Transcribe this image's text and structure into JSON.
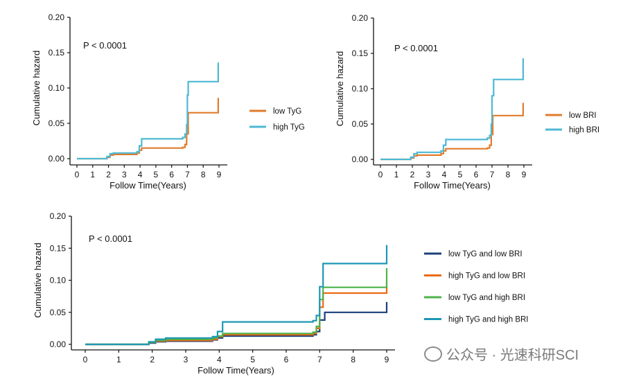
{
  "watermark": "公众号 · 光速科研SCI",
  "colors": {
    "orange": "#E07B2A",
    "cyan": "#4DB8D3",
    "navy": "#1B3F7A",
    "orange2": "#EB6A12",
    "green": "#4DB34A",
    "teal": "#1D97B4"
  },
  "chart_data": [
    {
      "id": "tyg",
      "type": "line",
      "step": true,
      "annotation": "P < 0.0001",
      "xlabel": "Follow Time(Years)",
      "ylabel": "Cumulative hazard",
      "xlim": [
        0,
        9
      ],
      "ylim": [
        0,
        0.2
      ],
      "xticks": [
        "0",
        "1",
        "2",
        "3",
        "4",
        "5",
        "6",
        "7",
        "8",
        "9"
      ],
      "yticks": [
        "0.00",
        "0.05",
        "0.10",
        "0.15",
        "0.20"
      ],
      "legend_position": "right",
      "series": [
        {
          "name": "low TyG",
          "color": "orange",
          "x": [
            0,
            1.5,
            1.9,
            2.1,
            2.3,
            3.8,
            3.95,
            4.1,
            6.7,
            6.85,
            6.95,
            7.05,
            8.95,
            8.95
          ],
          "y": [
            0,
            0,
            0.002,
            0.005,
            0.006,
            0.008,
            0.012,
            0.015,
            0.016,
            0.02,
            0.035,
            0.065,
            0.065,
            0.086
          ]
        },
        {
          "name": "high TyG",
          "color": "cyan",
          "x": [
            0,
            1.5,
            1.9,
            2.1,
            2.3,
            3.8,
            3.95,
            4.1,
            6.7,
            6.85,
            6.95,
            7.0,
            7.05,
            8.95,
            8.95
          ],
          "y": [
            0,
            0,
            0.003,
            0.007,
            0.008,
            0.01,
            0.018,
            0.028,
            0.03,
            0.035,
            0.048,
            0.09,
            0.109,
            0.109,
            0.136
          ]
        }
      ]
    },
    {
      "id": "bri",
      "type": "line",
      "step": true,
      "annotation": "P < 0.0001",
      "xlabel": "Follow Time(Years)",
      "ylabel": "Cumulative hazard",
      "xlim": [
        0,
        9
      ],
      "ylim": [
        0,
        0.2
      ],
      "xticks": [
        "0",
        "1",
        "2",
        "3",
        "4",
        "5",
        "6",
        "7",
        "8",
        "9"
      ],
      "yticks": [
        "0.00",
        "0.05",
        "0.10",
        "0.15",
        "0.20"
      ],
      "legend_position": "right",
      "series": [
        {
          "name": "low BRI",
          "color": "orange",
          "x": [
            0,
            1.5,
            1.9,
            2.1,
            2.3,
            3.8,
            3.95,
            4.1,
            6.7,
            6.85,
            6.95,
            7.05,
            8.95,
            8.95
          ],
          "y": [
            0,
            0,
            0.002,
            0.005,
            0.006,
            0.008,
            0.012,
            0.015,
            0.016,
            0.02,
            0.035,
            0.062,
            0.062,
            0.08
          ]
        },
        {
          "name": "high BRI",
          "color": "cyan",
          "x": [
            0,
            1.5,
            1.9,
            2.1,
            2.3,
            3.8,
            3.95,
            4.1,
            6.7,
            6.85,
            6.95,
            7.0,
            7.1,
            8.95,
            8.95
          ],
          "y": [
            0,
            0,
            0.003,
            0.008,
            0.01,
            0.012,
            0.02,
            0.028,
            0.03,
            0.034,
            0.05,
            0.09,
            0.113,
            0.113,
            0.143
          ]
        }
      ]
    },
    {
      "id": "combined",
      "type": "line",
      "step": true,
      "annotation": "P < 0.0001",
      "xlabel": "Follow Time(Years)",
      "ylabel": "Cumulative hazard",
      "xlim": [
        0,
        9
      ],
      "ylim": [
        0,
        0.2
      ],
      "xticks": [
        "0",
        "1",
        "2",
        "3",
        "4",
        "5",
        "6",
        "7",
        "8",
        "9"
      ],
      "yticks": [
        "0.00",
        "0.05",
        "0.10",
        "0.15",
        "0.20"
      ],
      "legend_position": "right",
      "series": [
        {
          "name": "low TyG and low BRI",
          "color": "navy",
          "x": [
            0,
            1.6,
            1.9,
            2.1,
            2.4,
            3.8,
            3.95,
            4.1,
            6.8,
            6.9,
            7.0,
            7.15,
            9.0,
            9.0
          ],
          "y": [
            0,
            0,
            0.002,
            0.004,
            0.005,
            0.007,
            0.01,
            0.013,
            0.015,
            0.02,
            0.038,
            0.05,
            0.05,
            0.066
          ]
        },
        {
          "name": "high TyG and low BRI",
          "color": "orange2",
          "x": [
            0,
            1.6,
            1.9,
            2.1,
            2.4,
            3.8,
            3.95,
            4.1,
            6.8,
            6.9,
            7.0,
            7.1,
            9.0,
            9.0
          ],
          "y": [
            0,
            0,
            0.003,
            0.005,
            0.006,
            0.008,
            0.012,
            0.015,
            0.017,
            0.025,
            0.058,
            0.08,
            0.08,
            0.1
          ]
        },
        {
          "name": "low TyG and high BRI",
          "color": "green",
          "x": [
            0,
            1.6,
            1.9,
            2.1,
            2.4,
            3.8,
            3.95,
            4.1,
            6.8,
            6.9,
            7.0,
            7.1,
            9.0,
            9.0
          ],
          "y": [
            0,
            0,
            0.003,
            0.006,
            0.008,
            0.01,
            0.013,
            0.017,
            0.019,
            0.028,
            0.07,
            0.089,
            0.089,
            0.119
          ]
        },
        {
          "name": "high TyG and high BRI",
          "color": "teal",
          "x": [
            0,
            1.6,
            1.9,
            2.1,
            2.4,
            3.8,
            3.95,
            4.1,
            6.8,
            6.9,
            7.0,
            7.1,
            9.0,
            9.0
          ],
          "y": [
            0,
            0,
            0.004,
            0.008,
            0.01,
            0.012,
            0.02,
            0.035,
            0.037,
            0.045,
            0.09,
            0.126,
            0.126,
            0.155
          ]
        }
      ]
    }
  ]
}
